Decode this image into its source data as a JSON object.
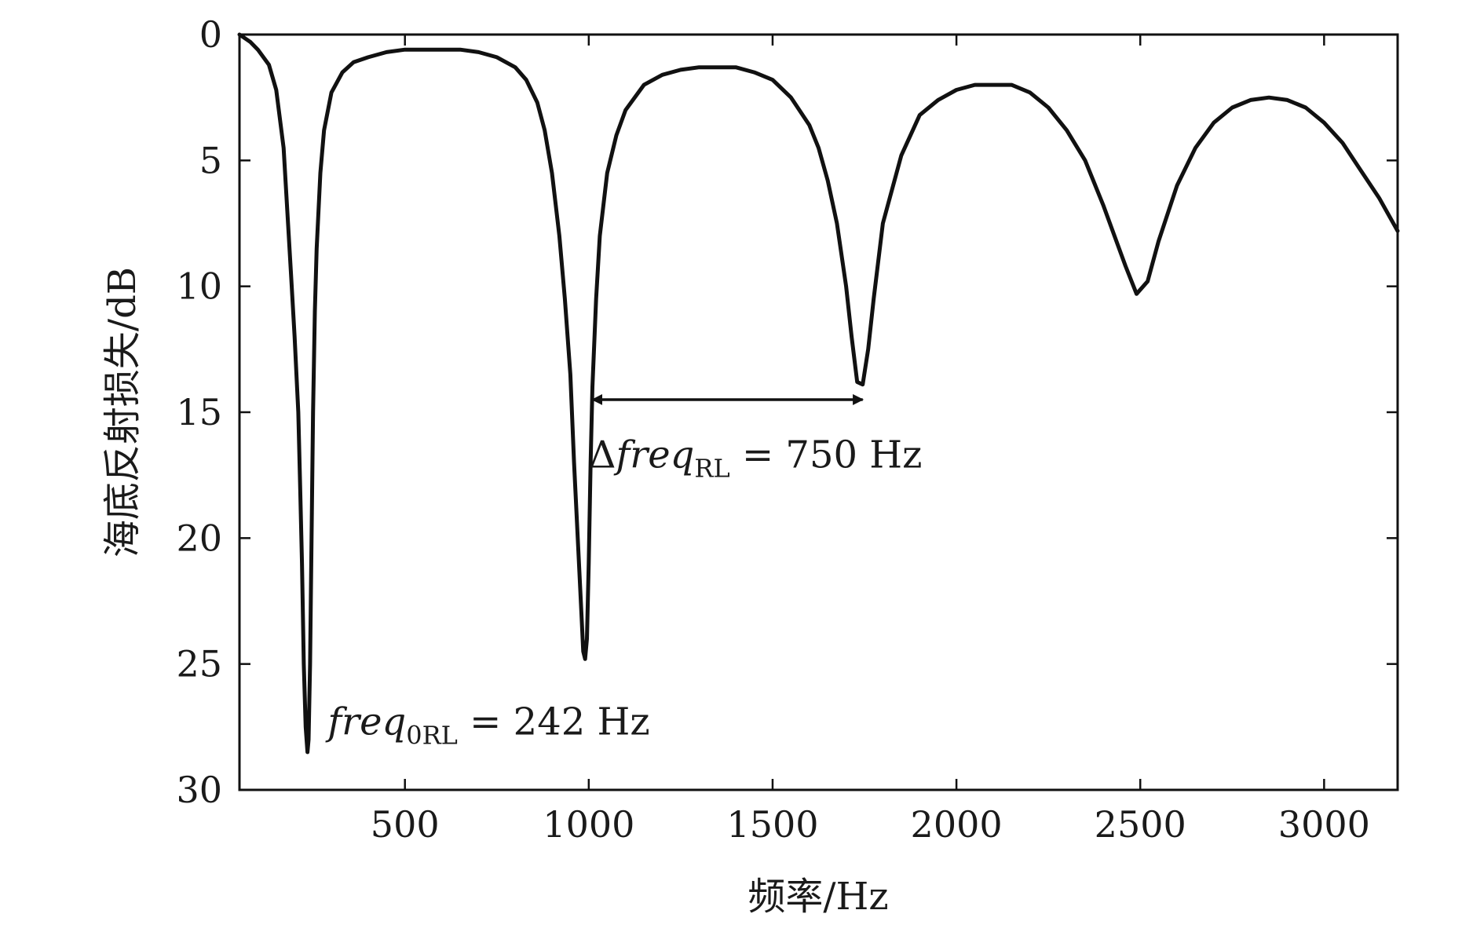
{
  "chart_data": {
    "type": "line",
    "xlabel": "频率/Hz",
    "ylabel": "海底反射损失/dB",
    "xlim": [
      50,
      3200
    ],
    "ylim": [
      0,
      30
    ],
    "y_inverted": true,
    "xticks": [
      500,
      1000,
      1500,
      2000,
      2500,
      3000
    ],
    "yticks": [
      0,
      5,
      10,
      15,
      20,
      25,
      30
    ],
    "xtick_labels": [
      "500",
      "1000",
      "1500",
      "2000",
      "2500",
      "3000"
    ],
    "ytick_labels": [
      "0",
      "5",
      "10",
      "15",
      "20",
      "25",
      "30"
    ],
    "grid": false,
    "series": [
      {
        "color": "#111111",
        "x": [
          50,
          80,
          100,
          130,
          150,
          170,
          180,
          190,
          200,
          210,
          215,
          220,
          225,
          230,
          235,
          238,
          242,
          246,
          250,
          255,
          260,
          270,
          280,
          300,
          330,
          360,
          400,
          450,
          500,
          550,
          600,
          650,
          700,
          750,
          800,
          830,
          860,
          880,
          900,
          920,
          935,
          950,
          960,
          970,
          980,
          985,
          990,
          995,
          1000,
          1005,
          1010,
          1020,
          1030,
          1050,
          1075,
          1100,
          1150,
          1200,
          1250,
          1300,
          1350,
          1400,
          1450,
          1500,
          1550,
          1600,
          1625,
          1650,
          1675,
          1700,
          1715,
          1730,
          1745,
          1760,
          1775,
          1800,
          1850,
          1900,
          1950,
          2000,
          2050,
          2100,
          2150,
          2200,
          2250,
          2300,
          2350,
          2400,
          2430,
          2460,
          2490,
          2520,
          2550,
          2600,
          2650,
          2700,
          2750,
          2800,
          2850,
          2900,
          2950,
          3000,
          3050,
          3100,
          3150,
          3200
        ],
        "y": [
          0.0,
          0.3,
          0.6,
          1.2,
          2.2,
          4.5,
          7.0,
          9.5,
          12.0,
          15.0,
          18.0,
          21.0,
          25.0,
          27.5,
          28.5,
          28.0,
          25.0,
          20.0,
          15.0,
          11.0,
          8.5,
          5.5,
          3.8,
          2.3,
          1.5,
          1.1,
          0.9,
          0.7,
          0.6,
          0.6,
          0.6,
          0.6,
          0.7,
          0.9,
          1.3,
          1.8,
          2.7,
          3.8,
          5.5,
          8.0,
          10.5,
          13.5,
          17.0,
          20.0,
          23.0,
          24.5,
          24.8,
          24.0,
          21.0,
          17.0,
          14.0,
          10.5,
          8.0,
          5.5,
          4.0,
          3.0,
          2.0,
          1.6,
          1.4,
          1.3,
          1.3,
          1.3,
          1.5,
          1.8,
          2.5,
          3.6,
          4.5,
          5.8,
          7.5,
          10.0,
          12.0,
          13.8,
          13.9,
          12.5,
          10.5,
          7.5,
          4.8,
          3.2,
          2.6,
          2.2,
          2.0,
          2.0,
          2.0,
          2.3,
          2.9,
          3.8,
          5.0,
          6.8,
          8.0,
          9.2,
          10.3,
          9.8,
          8.2,
          6.0,
          4.5,
          3.5,
          2.9,
          2.6,
          2.5,
          2.6,
          2.9,
          3.5,
          4.3,
          5.4,
          6.5,
          7.8
        ]
      }
    ],
    "annotations": [
      {
        "parts": [
          "Δ",
          "freq",
          "RL",
          " = 750 Hz"
        ],
        "arrow_from": [
          1010,
          14.5
        ],
        "arrow_to": [
          1745,
          14.5
        ],
        "text_at": [
          1000,
          17.2
        ]
      },
      {
        "parts": [
          "freq",
          "0RL",
          " = 242 Hz"
        ],
        "text_at": [
          290,
          27.8
        ]
      }
    ]
  }
}
